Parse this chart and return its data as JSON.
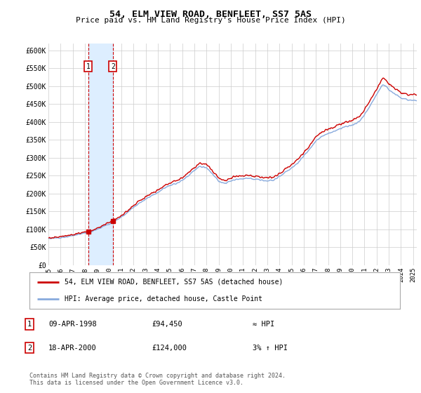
{
  "title": "54, ELM VIEW ROAD, BENFLEET, SS7 5AS",
  "subtitle": "Price paid vs. HM Land Registry's House Price Index (HPI)",
  "legend_line1": "54, ELM VIEW ROAD, BENFLEET, SS7 5AS (detached house)",
  "legend_line2": "HPI: Average price, detached house, Castle Point",
  "transaction1_date": "09-APR-1998",
  "transaction1_price": "£94,450",
  "transaction1_hpi": "≈ HPI",
  "transaction2_date": "18-APR-2000",
  "transaction2_price": "£124,000",
  "transaction2_hpi": "3% ↑ HPI",
  "footer": "Contains HM Land Registry data © Crown copyright and database right 2024.\nThis data is licensed under the Open Government Licence v3.0.",
  "ylim": [
    0,
    620000
  ],
  "yticks": [
    0,
    50000,
    100000,
    150000,
    200000,
    250000,
    300000,
    350000,
    400000,
    450000,
    500000,
    550000,
    600000
  ],
  "ytick_labels": [
    "£0",
    "£50K",
    "£100K",
    "£150K",
    "£200K",
    "£250K",
    "£300K",
    "£350K",
    "£400K",
    "£450K",
    "£500K",
    "£550K",
    "£600K"
  ],
  "price_color": "#cc0000",
  "hpi_color": "#88aadd",
  "transaction1_x": 1998.27,
  "transaction2_x": 2000.3,
  "transaction1_y": 94450,
  "transaction2_y": 124000,
  "shade_color": "#ddeeff",
  "grid_color": "#cccccc",
  "background_color": "#ffffff",
  "xlim_start": 1995,
  "xlim_end": 2025.3
}
